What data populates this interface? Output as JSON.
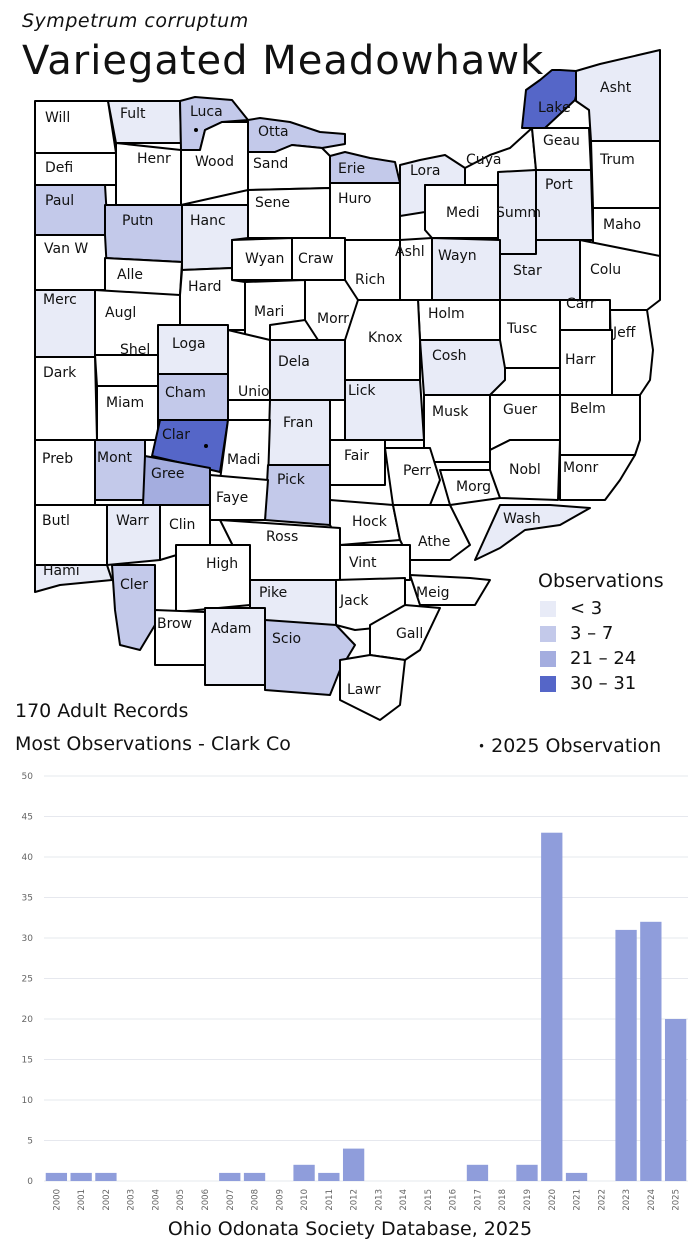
{
  "header": {
    "scientific_name": "Sympetrum corruptum",
    "common_name": "Variegated Meadowhawk"
  },
  "colors": {
    "none": "#ffffff",
    "lt3": "#e8ebf7",
    "3to7": "#c3c9ea",
    "21to24": "#a4addf",
    "30to31": "#5566c8",
    "bar": "#8f9ddb"
  },
  "legend": {
    "title": "Observations",
    "items": [
      {
        "label": "< 3",
        "color": "#e8ebf7"
      },
      {
        "label": "3 – 7",
        "color": "#c3c9ea"
      },
      {
        "label": "21 – 24",
        "color": "#a4addf"
      },
      {
        "label": "30 – 31",
        "color": "#5566c8"
      }
    ]
  },
  "counties": [
    {
      "label": "Will",
      "tier": "none"
    },
    {
      "label": "Fult",
      "tier": "lt3"
    },
    {
      "label": "Luca",
      "tier": "3to7"
    },
    {
      "label": "Otta",
      "tier": "3to7"
    },
    {
      "label": "Lake",
      "tier": "30to31"
    },
    {
      "label": "Asht",
      "tier": "lt3"
    },
    {
      "label": "Defi",
      "tier": "none"
    },
    {
      "label": "Henr",
      "tier": "none"
    },
    {
      "label": "Wood",
      "tier": "none"
    },
    {
      "label": "Sand",
      "tier": "none"
    },
    {
      "label": "Erie",
      "tier": "3to7"
    },
    {
      "label": "Lora",
      "tier": "lt3"
    },
    {
      "label": "Cuya",
      "tier": "none"
    },
    {
      "label": "Geau",
      "tier": "none"
    },
    {
      "label": "Trum",
      "tier": "none"
    },
    {
      "label": "Paul",
      "tier": "3to7"
    },
    {
      "label": "Putn",
      "tier": "3to7"
    },
    {
      "label": "Hanc",
      "tier": "lt3"
    },
    {
      "label": "Sene",
      "tier": "none"
    },
    {
      "label": "Huro",
      "tier": "none"
    },
    {
      "label": "Medi",
      "tier": "none"
    },
    {
      "label": "Summ",
      "tier": "lt3"
    },
    {
      "label": "Port",
      "tier": "lt3"
    },
    {
      "label": "Maho",
      "tier": "none"
    },
    {
      "label": "Van W",
      "tier": "none"
    },
    {
      "label": "Alle",
      "tier": "none"
    },
    {
      "label": "Wyan",
      "tier": "none"
    },
    {
      "label": "Craw",
      "tier": "none"
    },
    {
      "label": "Rich",
      "tier": "none"
    },
    {
      "label": "Ashl",
      "tier": "none"
    },
    {
      "label": "Wayn",
      "tier": "lt3"
    },
    {
      "label": "Star",
      "tier": "lt3"
    },
    {
      "label": "Colu",
      "tier": "none"
    },
    {
      "label": "Hard",
      "tier": "none"
    },
    {
      "label": "Merc",
      "tier": "lt3"
    },
    {
      "label": "Augl",
      "tier": "none"
    },
    {
      "label": "Mari",
      "tier": "none"
    },
    {
      "label": "Morr",
      "tier": "none"
    },
    {
      "label": "Holm",
      "tier": "none"
    },
    {
      "label": "Carr",
      "tier": "none"
    },
    {
      "label": "Knox",
      "tier": "none"
    },
    {
      "label": "Tusc",
      "tier": "none"
    },
    {
      "label": "Jeff",
      "tier": "none"
    },
    {
      "label": "Shel",
      "tier": "none"
    },
    {
      "label": "Loga",
      "tier": "lt3"
    },
    {
      "label": "Dela",
      "tier": "lt3"
    },
    {
      "label": "Cosh",
      "tier": "lt3"
    },
    {
      "label": "Harr",
      "tier": "none"
    },
    {
      "label": "Dark",
      "tier": "none"
    },
    {
      "label": "Cham",
      "tier": "3to7"
    },
    {
      "label": "Unio",
      "tier": "none"
    },
    {
      "label": "Lick",
      "tier": "lt3"
    },
    {
      "label": "Miam",
      "tier": "none"
    },
    {
      "label": "Musk",
      "tier": "none"
    },
    {
      "label": "Guer",
      "tier": "none"
    },
    {
      "label": "Belm",
      "tier": "none"
    },
    {
      "label": "Fran",
      "tier": "lt3"
    },
    {
      "label": "Clar",
      "tier": "30to31"
    },
    {
      "label": "Preb",
      "tier": "none"
    },
    {
      "label": "Mont",
      "tier": "3to7"
    },
    {
      "label": "Madi",
      "tier": "none"
    },
    {
      "label": "Fair",
      "tier": "none"
    },
    {
      "label": "Perr",
      "tier": "none"
    },
    {
      "label": "Nobl",
      "tier": "none"
    },
    {
      "label": "Monr",
      "tier": "none"
    },
    {
      "label": "Gree",
      "tier": "21to24"
    },
    {
      "label": "Pick",
      "tier": "3to7"
    },
    {
      "label": "Morg",
      "tier": "none"
    },
    {
      "label": "Faye",
      "tier": "none"
    },
    {
      "label": "Butl",
      "tier": "none"
    },
    {
      "label": "Warr",
      "tier": "lt3"
    },
    {
      "label": "Clin",
      "tier": "none"
    },
    {
      "label": "Hock",
      "tier": "none"
    },
    {
      "label": "Wash",
      "tier": "lt3"
    },
    {
      "label": "Athe",
      "tier": "none"
    },
    {
      "label": "Ross",
      "tier": "none"
    },
    {
      "label": "Vint",
      "tier": "none"
    },
    {
      "label": "Hami",
      "tier": "lt3"
    },
    {
      "label": "High",
      "tier": "none"
    },
    {
      "label": "Cler",
      "tier": "3to7"
    },
    {
      "label": "Meig",
      "tier": "none"
    },
    {
      "label": "Pike",
      "tier": "lt3"
    },
    {
      "label": "Jack",
      "tier": "none"
    },
    {
      "label": "Brow",
      "tier": "none"
    },
    {
      "label": "Adam",
      "tier": "lt3"
    },
    {
      "label": "Scio",
      "tier": "3to7"
    },
    {
      "label": "Gall",
      "tier": "none"
    },
    {
      "label": "Lawr",
      "tier": "none"
    }
  ],
  "observations_2025": [
    "Luca",
    "Clar"
  ],
  "summary": {
    "records": "170 Adult Records",
    "most": "Most Observations - Clark Co",
    "obs_2025": "2025  Observation",
    "marker": "•"
  },
  "credit": "Ohio Odonata Society Database, 2025",
  "chart_data": {
    "type": "bar",
    "categories": [
      "2000",
      "2001",
      "2002",
      "2003",
      "2004",
      "2005",
      "2006",
      "2007",
      "2008",
      "2009",
      "2010",
      "2011",
      "2012",
      "2013",
      "2014",
      "2015",
      "2016",
      "2017",
      "2018",
      "2019",
      "2020",
      "2021",
      "2022",
      "2023",
      "2024",
      "2025"
    ],
    "values": [
      1,
      1,
      1,
      0,
      0,
      0,
      0,
      1,
      1,
      0,
      2,
      1,
      4,
      0,
      0,
      0,
      0,
      2,
      0,
      2,
      43,
      1,
      0,
      31,
      32,
      20
    ],
    "yticks": [
      0,
      5,
      10,
      15,
      20,
      25,
      30,
      35,
      40,
      45,
      50
    ],
    "ylim": [
      0,
      50
    ],
    "grid": true,
    "title": "",
    "xlabel": "",
    "ylabel": ""
  }
}
